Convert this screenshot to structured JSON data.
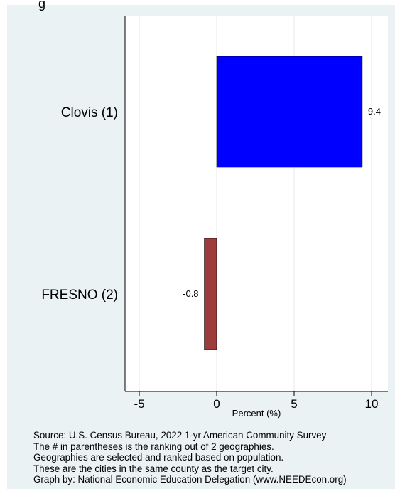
{
  "chart_data": {
    "type": "bar",
    "orientation": "horizontal",
    "title_fragment": "g",
    "categories": [
      "Clovis  (1)",
      "FRESNO  (2)"
    ],
    "values": [
      9.4,
      -0.8
    ],
    "value_labels": [
      "9.4",
      "-0.8"
    ],
    "colors": [
      "#0000ff",
      "#9e3b3b"
    ],
    "xlabel": "Percent (%)",
    "xticks": [
      -5,
      0,
      5,
      10
    ],
    "xtick_labels": [
      "-5",
      "0",
      "5",
      "10"
    ],
    "xlim": [
      -6,
      11
    ],
    "grid": true
  },
  "footnotes": [
    "Source: U.S. Census Bureau, 2022 1-yr American Community Survey",
    "The # in parentheses is the ranking out of 2 geographies.",
    "Geographies are selected and ranked based on population.",
    "These are the cities in the same county as the target city.",
    "Graph by: National Economic Education Delegation (www.NEEDEcon.org)"
  ]
}
